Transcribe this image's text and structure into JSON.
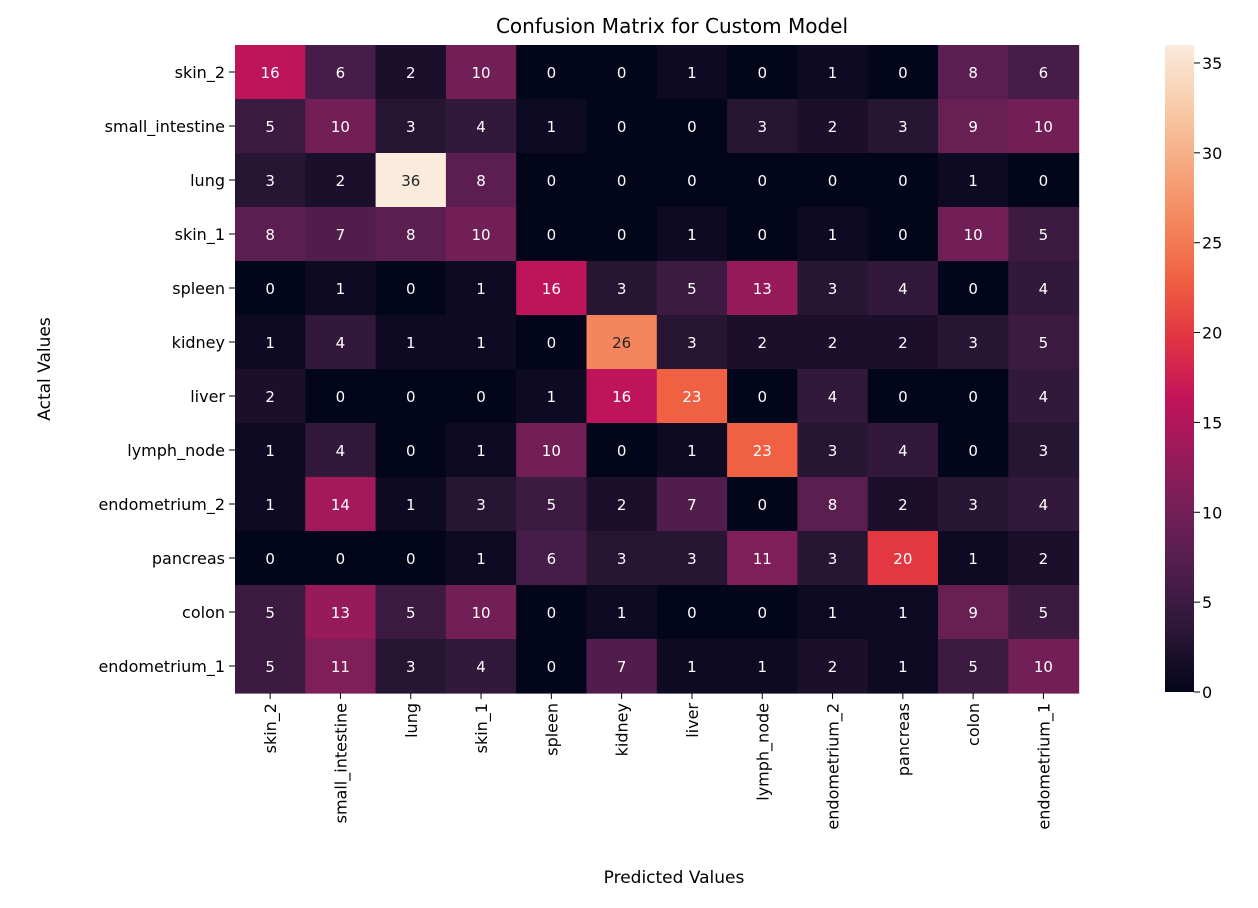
{
  "chart_data": {
    "type": "heatmap",
    "title": "Confusion Matrix for Custom Model",
    "xlabel": "Predicted Values",
    "ylabel": "Actal Values",
    "x_categories": [
      "skin_2",
      "small_intestine",
      "lung",
      "skin_1",
      "spleen",
      "kidney",
      "liver",
      "lymph_node",
      "endometrium_2",
      "pancreas",
      "colon",
      "endometrium_1"
    ],
    "y_categories": [
      "skin_2",
      "small_intestine",
      "lung",
      "skin_1",
      "spleen",
      "kidney",
      "liver",
      "lymph_node",
      "endometrium_2",
      "pancreas",
      "colon",
      "endometrium_1"
    ],
    "values": [
      [
        16,
        6,
        2,
        10,
        0,
        0,
        1,
        0,
        1,
        0,
        8,
        6
      ],
      [
        5,
        10,
        3,
        4,
        1,
        0,
        0,
        3,
        2,
        3,
        9,
        10
      ],
      [
        3,
        2,
        36,
        8,
        0,
        0,
        0,
        0,
        0,
        0,
        1,
        0
      ],
      [
        8,
        7,
        8,
        10,
        0,
        0,
        1,
        0,
        1,
        0,
        10,
        5
      ],
      [
        0,
        1,
        0,
        1,
        16,
        3,
        5,
        13,
        3,
        4,
        0,
        4
      ],
      [
        1,
        4,
        1,
        1,
        0,
        26,
        3,
        2,
        2,
        2,
        3,
        5
      ],
      [
        2,
        0,
        0,
        0,
        1,
        16,
        23,
        0,
        4,
        0,
        0,
        4
      ],
      [
        1,
        4,
        0,
        1,
        10,
        0,
        1,
        23,
        3,
        4,
        0,
        3
      ],
      [
        1,
        14,
        1,
        3,
        5,
        2,
        7,
        0,
        8,
        2,
        3,
        4
      ],
      [
        0,
        0,
        0,
        1,
        6,
        3,
        3,
        11,
        3,
        20,
        1,
        2
      ],
      [
        5,
        13,
        5,
        10,
        0,
        1,
        0,
        0,
        1,
        1,
        9,
        5
      ],
      [
        5,
        11,
        3,
        4,
        0,
        7,
        1,
        1,
        2,
        1,
        5,
        10
      ]
    ],
    "colorbar": {
      "range": [
        0,
        36
      ],
      "ticks": [
        0,
        5,
        10,
        15,
        20,
        25,
        30,
        35
      ],
      "colormap": "rocket",
      "stops": [
        "#03051a",
        "#2a1636",
        "#4c1d4b",
        "#711f57",
        "#981b5b",
        "#c3145a",
        "#e13342",
        "#f06043",
        "#f4875e",
        "#f6aa82",
        "#f8cdab",
        "#faebdd"
      ]
    },
    "grid": false
  }
}
